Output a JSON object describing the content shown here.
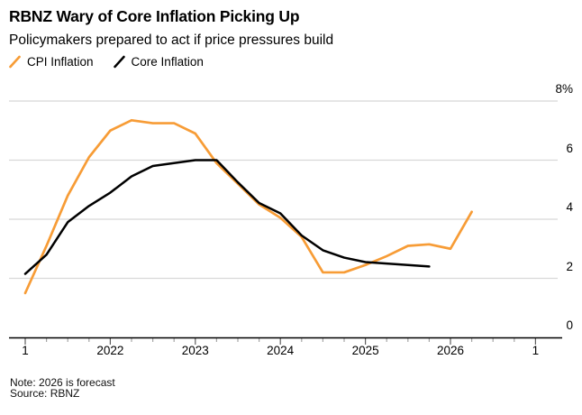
{
  "header": {
    "title": "RBNZ Wary of Core Inflation Picking Up",
    "subtitle": "Policymakers prepared to act if price pressures build"
  },
  "legend": [
    {
      "label": "CPI Inflation",
      "color": "#F79C36"
    },
    {
      "label": "Core Inflation",
      "color": "#000000"
    }
  ],
  "footer": {
    "note": "Note: 2026 is forecast",
    "source": "Source: RBNZ"
  },
  "colors": {
    "cpi_line": "#F79C36",
    "core_line": "#000000",
    "gridline": "#D8D8D8",
    "axis": "#000000",
    "major_tick": "#5F5F5F",
    "minor_tick": "#A6A6A6",
    "background": "#FFFFFF"
  },
  "chart_data": {
    "type": "line",
    "title": "RBNZ Wary of Core Inflation Picking Up",
    "subtitle": "Policymakers prepared to act if price pressures build",
    "x_unit": "quarter",
    "x_start_period": "2021-Q1",
    "x_axis": {
      "quarters_total": 24,
      "major_ticks": [
        {
          "label": "1",
          "q": 0
        },
        {
          "label": "2022",
          "q": 4
        },
        {
          "label": "2023",
          "q": 8
        },
        {
          "label": "2024",
          "q": 12
        },
        {
          "label": "2025",
          "q": 16
        },
        {
          "label": "2026",
          "q": 20
        },
        {
          "label": "1",
          "q": 24
        }
      ]
    },
    "y_axis": {
      "range": [
        0,
        8
      ],
      "unit": "%",
      "gridline_values": [
        2,
        4,
        6,
        8
      ],
      "tick_labels": [
        {
          "label": "8%",
          "value": 8
        },
        {
          "label": "6",
          "value": 6
        },
        {
          "label": "4",
          "value": 4
        },
        {
          "label": "2",
          "value": 2
        },
        {
          "label": "0",
          "value": 0
        }
      ]
    },
    "series": [
      {
        "name": "CPI Inflation",
        "color": "#F79C36",
        "width": 2.7,
        "start_quarter_index": 0,
        "periods_note": "2021-Q1 through 2026-Q2, 2026 is forecast",
        "values": [
          1.5,
          3.1,
          4.8,
          6.1,
          7.0,
          7.35,
          7.25,
          7.25,
          6.9,
          5.9,
          5.2,
          4.5,
          4.05,
          3.4,
          2.2,
          2.2,
          2.45,
          2.75,
          3.1,
          3.15,
          3.0,
          4.25
        ]
      },
      {
        "name": "Core Inflation",
        "color": "#000000",
        "width": 2.5,
        "start_quarter_index": 0,
        "periods_note": "2021-Q1 through 2025-Q4",
        "values": [
          2.15,
          2.8,
          3.9,
          4.45,
          4.9,
          5.45,
          5.8,
          5.9,
          6.0,
          6.0,
          5.25,
          4.55,
          4.2,
          3.45,
          2.95,
          2.7,
          2.55,
          2.5,
          2.45,
          2.4
        ]
      }
    ]
  }
}
